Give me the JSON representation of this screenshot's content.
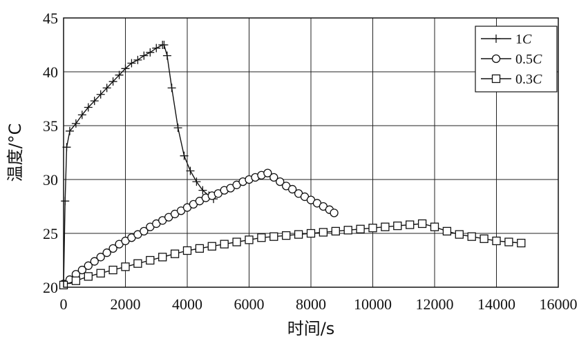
{
  "chart_data": {
    "type": "line",
    "title": "",
    "xlabel": "时间/s",
    "ylabel": "温度/°C",
    "xlim": [
      0,
      16000
    ],
    "ylim": [
      20,
      45
    ],
    "xticks": [
      0,
      2000,
      4000,
      6000,
      8000,
      10000,
      12000,
      14000,
      16000
    ],
    "yticks": [
      20,
      25,
      30,
      35,
      40,
      45
    ],
    "grid": true,
    "legend_position": "top-right",
    "series": [
      {
        "name": "1C",
        "legend_prefix": "1",
        "legend_italic": "C",
        "marker": "plus",
        "x": [
          0,
          50,
          100,
          200,
          400,
          600,
          800,
          1000,
          1200,
          1400,
          1600,
          1800,
          2000,
          2200,
          2400,
          2600,
          2800,
          3000,
          3200,
          3250,
          3350,
          3500,
          3700,
          3900,
          4100,
          4300,
          4500,
          4700,
          4850
        ],
        "y": [
          20.0,
          28.0,
          33.0,
          34.5,
          35.2,
          36.0,
          36.7,
          37.3,
          37.9,
          38.5,
          39.1,
          39.7,
          40.3,
          40.8,
          41.1,
          41.5,
          41.8,
          42.2,
          42.5,
          42.5,
          41.5,
          38.5,
          34.8,
          32.2,
          30.8,
          29.8,
          29.0,
          28.5,
          28.2
        ]
      },
      {
        "name": "0.5C",
        "legend_prefix": "0.5",
        "legend_italic": "C",
        "marker": "circle",
        "x": [
          0,
          200,
          400,
          600,
          800,
          1000,
          1200,
          1400,
          1600,
          1800,
          2000,
          2200,
          2400,
          2600,
          2800,
          3000,
          3200,
          3400,
          3600,
          3800,
          4000,
          4200,
          4400,
          4600,
          4800,
          5000,
          5200,
          5400,
          5600,
          5800,
          6000,
          6200,
          6400,
          6600,
          6800,
          7000,
          7200,
          7400,
          7600,
          7800,
          8000,
          8200,
          8400,
          8600,
          8750
        ],
        "y": [
          20.3,
          20.7,
          21.2,
          21.6,
          22.0,
          22.4,
          22.8,
          23.2,
          23.6,
          24.0,
          24.3,
          24.6,
          24.9,
          25.2,
          25.6,
          25.9,
          26.2,
          26.5,
          26.8,
          27.1,
          27.4,
          27.7,
          28.0,
          28.3,
          28.5,
          28.7,
          29.0,
          29.2,
          29.5,
          29.8,
          30.0,
          30.2,
          30.4,
          30.6,
          30.2,
          29.8,
          29.4,
          29.1,
          28.7,
          28.4,
          28.1,
          27.8,
          27.5,
          27.2,
          26.9
        ]
      },
      {
        "name": "0.3C",
        "legend_prefix": "0.3",
        "legend_italic": "C",
        "marker": "square",
        "x": [
          0,
          400,
          800,
          1200,
          1600,
          2000,
          2400,
          2800,
          3200,
          3600,
          4000,
          4400,
          4800,
          5200,
          5600,
          6000,
          6400,
          6800,
          7200,
          7600,
          8000,
          8400,
          8800,
          9200,
          9600,
          10000,
          10400,
          10800,
          11200,
          11600,
          12000,
          12400,
          12800,
          13200,
          13600,
          14000,
          14400,
          14800
        ],
        "y": [
          20.2,
          20.6,
          21.0,
          21.3,
          21.6,
          21.9,
          22.2,
          22.5,
          22.8,
          23.1,
          23.4,
          23.6,
          23.8,
          24.0,
          24.2,
          24.4,
          24.6,
          24.7,
          24.8,
          24.9,
          25.0,
          25.1,
          25.2,
          25.3,
          25.4,
          25.5,
          25.6,
          25.7,
          25.8,
          25.9,
          25.6,
          25.2,
          24.9,
          24.7,
          24.5,
          24.3,
          24.2,
          24.1
        ]
      }
    ]
  }
}
